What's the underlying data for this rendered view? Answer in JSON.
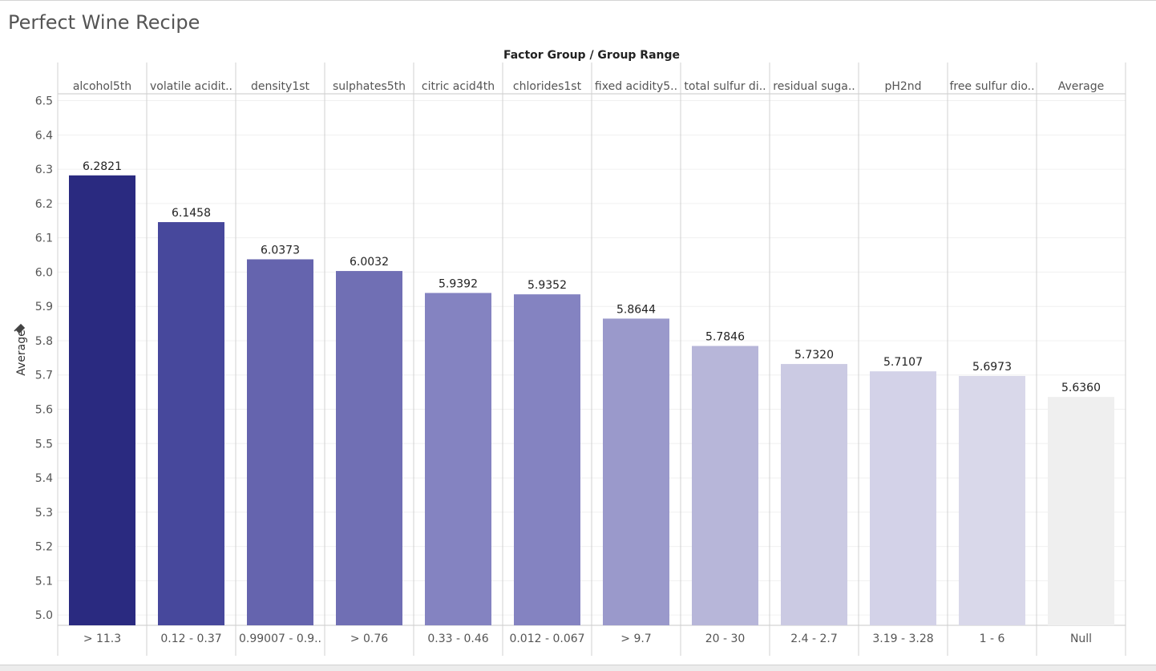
{
  "page": {
    "title": "Perfect Wine Recipe"
  },
  "chart_data": {
    "type": "bar",
    "column_header_title": "Factor Group  /  Group Range",
    "ylabel": "Average",
    "ylim": [
      4.97,
      6.52
    ],
    "yticks": [
      5.0,
      5.1,
      5.2,
      5.3,
      5.4,
      5.5,
      5.6,
      5.7,
      5.8,
      5.9,
      6.0,
      6.1,
      6.2,
      6.3,
      6.4,
      6.5
    ],
    "ytick_labels": [
      "5.0",
      "5.1",
      "5.2",
      "5.3",
      "5.4",
      "5.5",
      "5.6",
      "5.7",
      "5.8",
      "5.9",
      "6.0",
      "6.1",
      "6.2",
      "6.3",
      "6.4",
      "6.5"
    ],
    "grid": true,
    "legend": "none",
    "categories": [
      "alcohol5th",
      "volatile acidit..",
      "density1st",
      "sulphates5th",
      "citric acid4th",
      "chlorides1st",
      "fixed acidity5..",
      "total sulfur di..",
      "residual suga..",
      "pH2nd",
      "free sulfur dio..",
      "Average"
    ],
    "ranges": [
      "> 11.3",
      "0.12 - 0.37",
      "0.99007 - 0.9..",
      "> 0.76",
      "0.33 - 0.46",
      "0.012 - 0.067",
      "> 9.7",
      "20 - 30",
      "2.4 - 2.7",
      "3.19 - 3.28",
      "1 - 6",
      "Null"
    ],
    "values": [
      6.2821,
      6.1458,
      6.0373,
      6.0032,
      5.9392,
      5.9352,
      5.8644,
      5.7846,
      5.732,
      5.7107,
      5.6973,
      5.636
    ],
    "value_labels": [
      "6.2821",
      "6.1458",
      "6.0373",
      "6.0032",
      "5.9392",
      "5.9352",
      "5.8644",
      "5.7846",
      "5.7320",
      "5.7107",
      "5.6973",
      "5.6360"
    ],
    "colors": [
      "#2a2a80",
      "#47489c",
      "#6564ae",
      "#706fb4",
      "#8483c1",
      "#8483c1",
      "#9a99cb",
      "#b7b6d9",
      "#cbcae3",
      "#d3d2e8",
      "#d9d8ea",
      "#efefef"
    ]
  }
}
